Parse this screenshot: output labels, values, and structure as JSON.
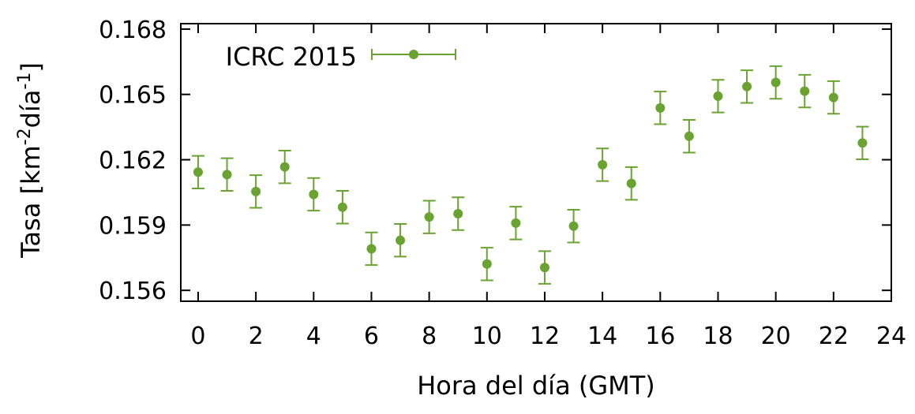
{
  "chart_data": {
    "type": "scatter",
    "xlabel": "Hora del día (GMT)",
    "ylabel": {
      "base": "Tasa [km",
      "sup1": "-2",
      "mid": "día",
      "sup2": "-1",
      "end": "]"
    },
    "xlim": [
      -0.6,
      24
    ],
    "ylim": [
      0.1555,
      0.16825
    ],
    "xticks": [
      0,
      2,
      4,
      6,
      8,
      10,
      12,
      14,
      16,
      18,
      20,
      22,
      24
    ],
    "xtick_labels": [
      "0",
      "2",
      "4",
      "6",
      "8",
      "10",
      "12",
      "14",
      "16",
      "18",
      "20",
      "22",
      "24"
    ],
    "yticks": [
      0.156,
      0.159,
      0.162,
      0.165,
      0.168
    ],
    "ytick_labels": [
      "0.156",
      "0.159",
      "0.162",
      "0.165",
      "0.168"
    ],
    "legend_position": "top-left",
    "color": "#6aa331",
    "series": [
      {
        "name": "ICRC 2015",
        "x": [
          0,
          1,
          2,
          3,
          4,
          5,
          6,
          7,
          8,
          9,
          10,
          11,
          12,
          13,
          14,
          15,
          16,
          17,
          18,
          19,
          20,
          21,
          22,
          23
        ],
        "y": [
          0.16143,
          0.16132,
          0.16054,
          0.16167,
          0.16041,
          0.15982,
          0.15791,
          0.1583,
          0.15937,
          0.15952,
          0.15721,
          0.15909,
          0.15705,
          0.15895,
          0.16177,
          0.16091,
          0.16438,
          0.16308,
          0.16492,
          0.16536,
          0.16555,
          0.16515,
          0.16486,
          0.16277
        ],
        "yerr": [
          0.00075,
          0.00075,
          0.00075,
          0.00075,
          0.00075,
          0.00075,
          0.00075,
          0.00075,
          0.00075,
          0.00075,
          0.00075,
          0.00075,
          0.00075,
          0.00075,
          0.00075,
          0.00075,
          0.00075,
          0.00075,
          0.00075,
          0.00075,
          0.00075,
          0.00075,
          0.00075,
          0.00075
        ]
      }
    ]
  }
}
